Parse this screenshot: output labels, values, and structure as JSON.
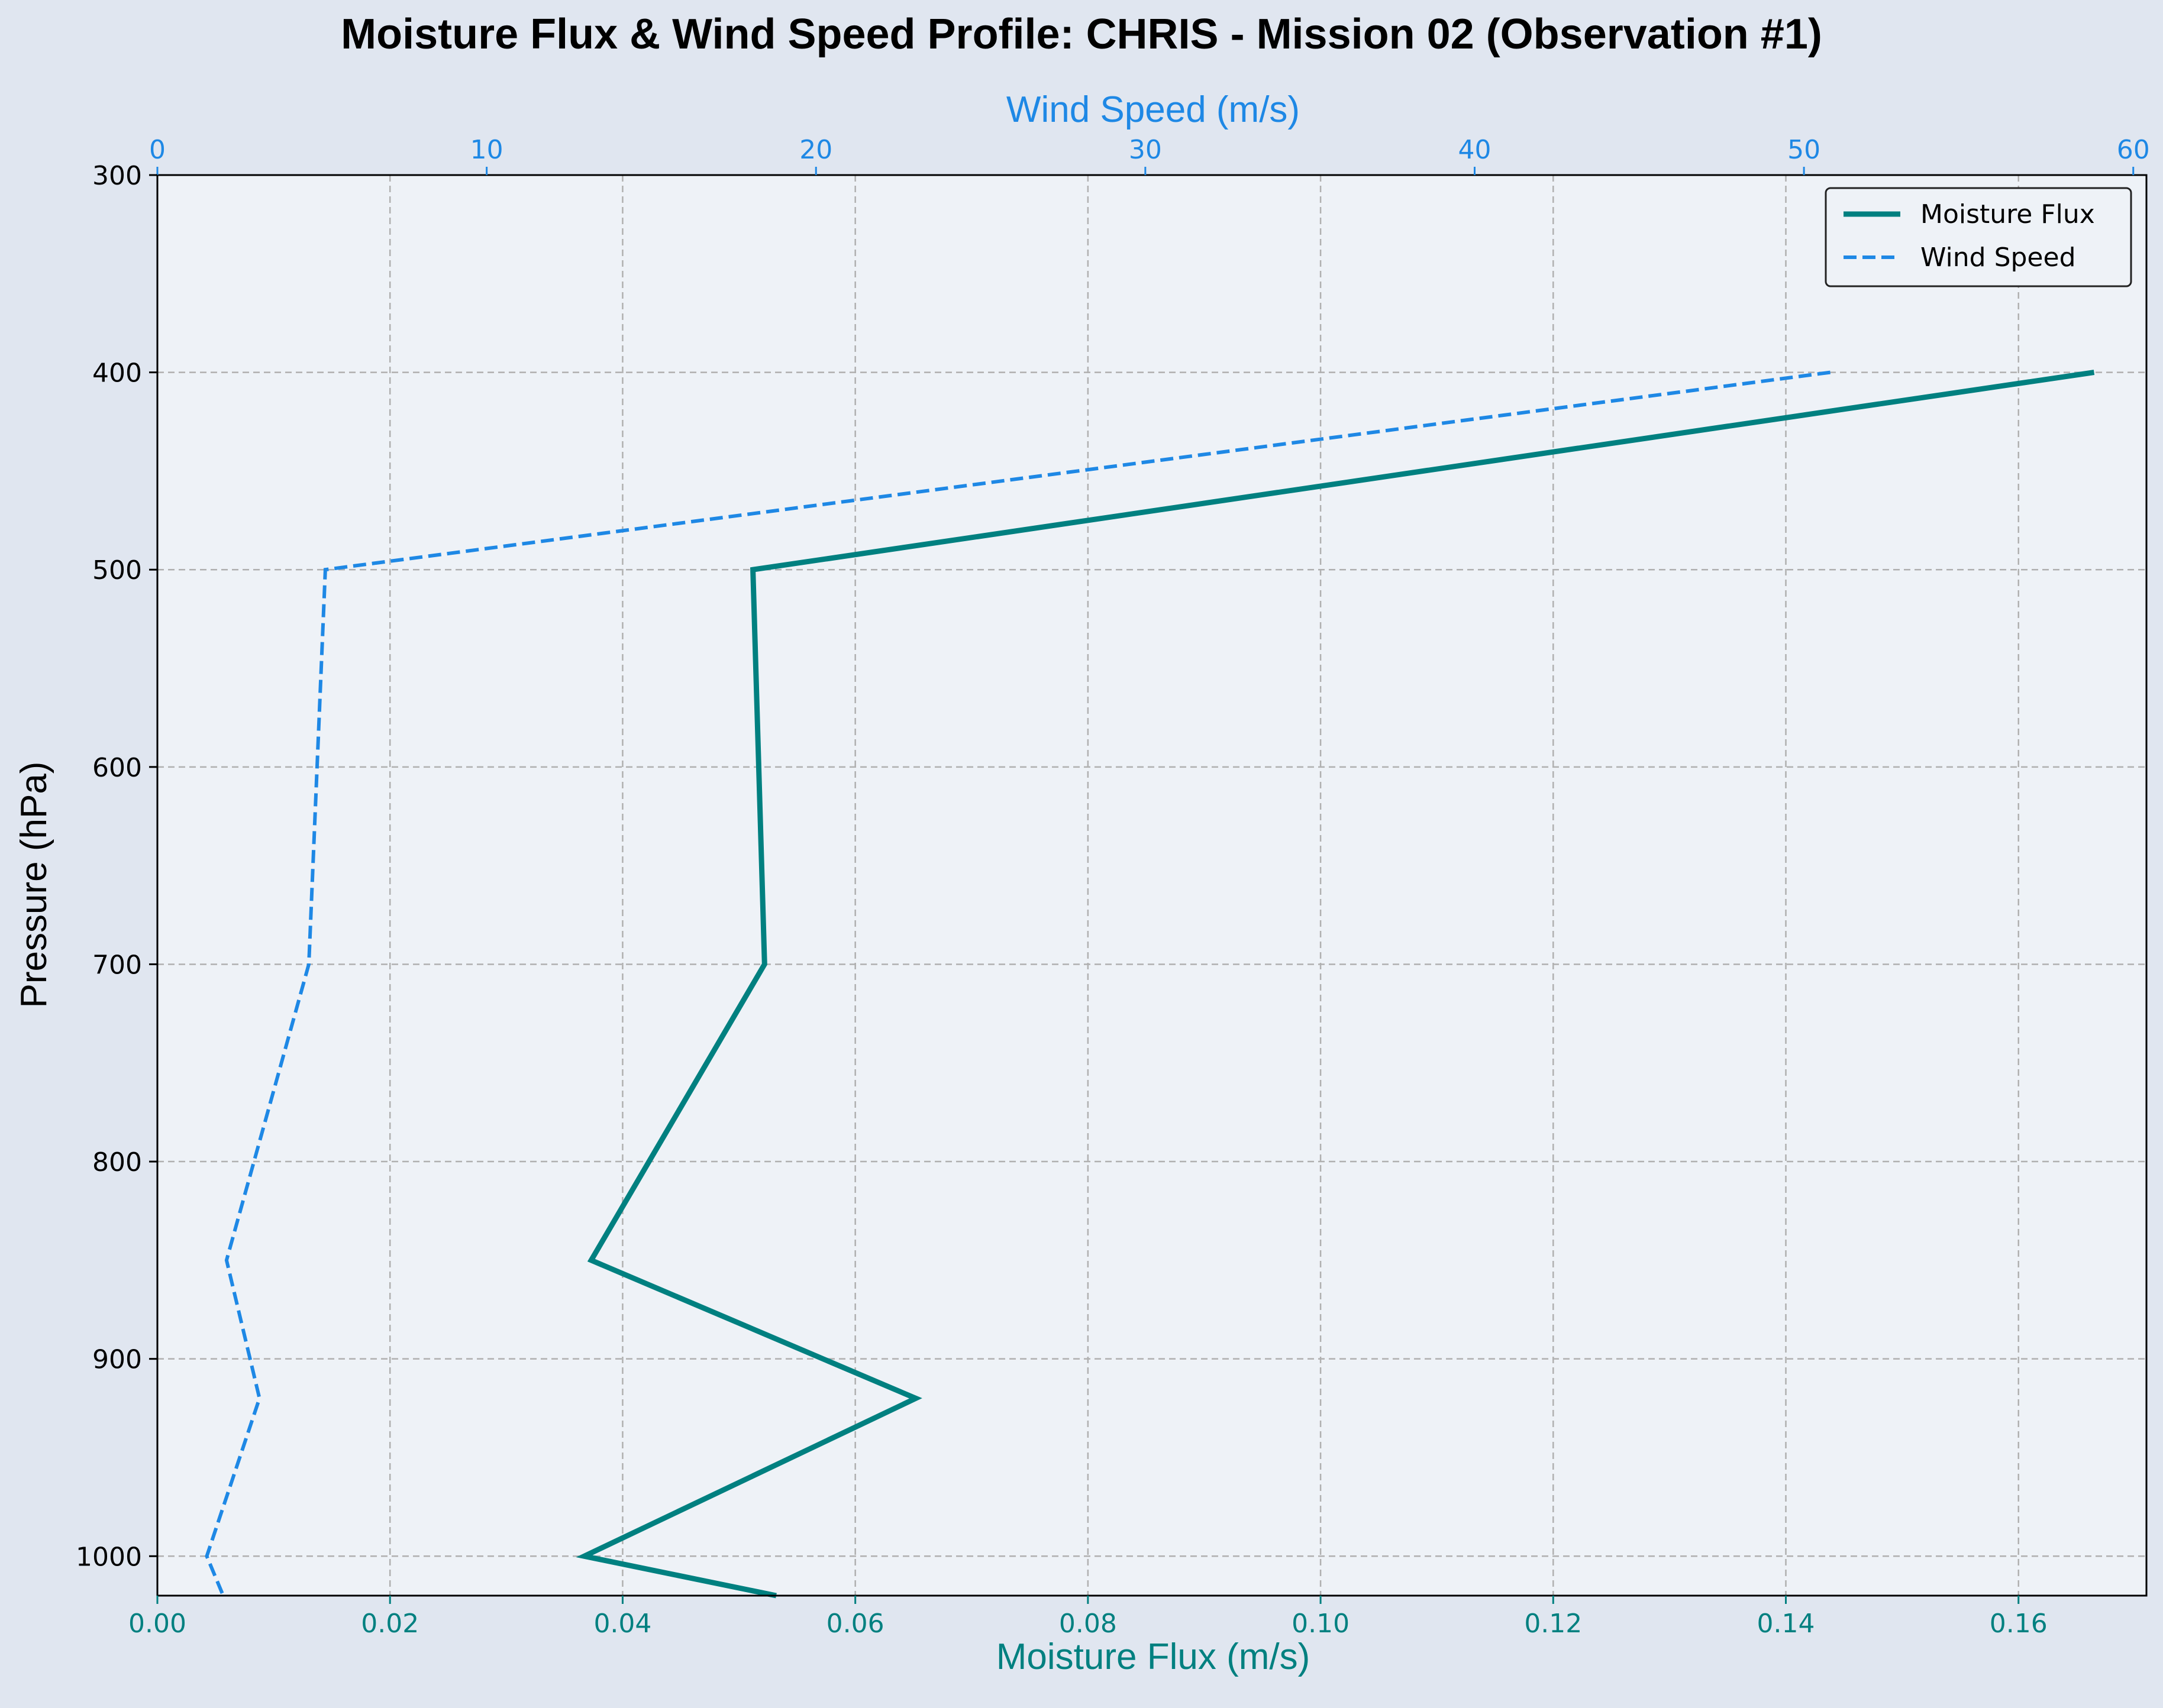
{
  "chart_data": {
    "type": "line",
    "title": "Moisture Flux & Wind Speed Profile: CHRIS - Mission 02 (Observation #1)",
    "xlabel": "Moisture Flux (m/s)",
    "x2label": "Wind Speed (m/s)",
    "ylabel": "Pressure (hPa)",
    "xlim": [
      0,
      0.171
    ],
    "x2lim": [
      0,
      60.4
    ],
    "ylim": [
      1020,
      300
    ],
    "y_inverted": true,
    "grid": true,
    "legend_position": "top-right",
    "x_ticks": [
      "0.00",
      "0.02",
      "0.04",
      "0.06",
      "0.08",
      "0.10",
      "0.12",
      "0.14",
      "0.16"
    ],
    "x2_ticks": [
      "0",
      "10",
      "20",
      "30",
      "40",
      "50",
      "60"
    ],
    "y_ticks": [
      "300",
      "400",
      "500",
      "600",
      "700",
      "800",
      "900",
      "1000"
    ],
    "pressure": [
      400,
      500,
      700,
      850,
      920,
      1000,
      1020
    ],
    "series": [
      {
        "name": "Moisture Flux",
        "axis": "bottom",
        "color": "#008080",
        "style": "solid",
        "values": [
          0.1665,
          0.0512,
          0.0522,
          0.0373,
          0.0652,
          0.0367,
          0.0532
        ]
      },
      {
        "name": "Wind Speed",
        "axis": "top",
        "color": "#1e88e5",
        "style": "dashed",
        "values": [
          50.8,
          5.1,
          4.6,
          2.1,
          3.1,
          1.5,
          2.0
        ]
      }
    ],
    "colors": {
      "plot_background": "#eef2f7",
      "figure_background": "#e0e6f0",
      "bottom_axis": "#008080",
      "top_axis": "#1e88e5",
      "grid": "#b0b0b0"
    }
  }
}
